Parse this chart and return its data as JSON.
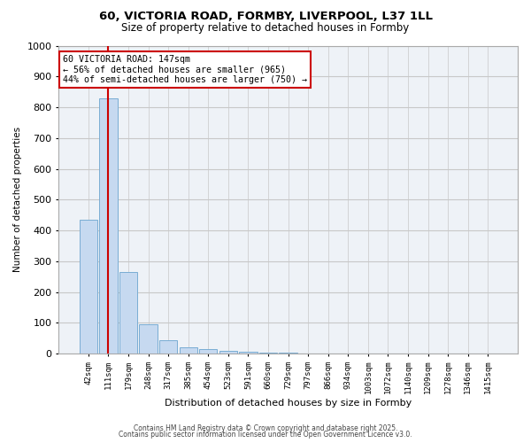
{
  "title_line1": "60, VICTORIA ROAD, FORMBY, LIVERPOOL, L37 1LL",
  "title_line2": "Size of property relative to detached houses in Formby",
  "xlabel": "Distribution of detached houses by size in Formby",
  "ylabel": "Number of detached properties",
  "bar_labels": [
    "42sqm",
    "111sqm",
    "179sqm",
    "248sqm",
    "317sqm",
    "385sqm",
    "454sqm",
    "523sqm",
    "591sqm",
    "660sqm",
    "729sqm",
    "797sqm",
    "866sqm",
    "934sqm",
    "1003sqm",
    "1072sqm",
    "1140sqm",
    "1209sqm",
    "1278sqm",
    "1346sqm",
    "1415sqm"
  ],
  "bar_values": [
    435,
    830,
    265,
    95,
    45,
    22,
    14,
    8,
    5,
    3,
    2,
    1,
    1,
    0,
    0,
    0,
    0,
    0,
    0,
    0,
    0
  ],
  "bar_color": "#c6d9f0",
  "bar_edge_color": "#7aadd4",
  "grid_color": "#c8c8c8",
  "background_color": "#eef2f7",
  "red_line_x": 1.0,
  "annotation_title": "60 VICTORIA ROAD: 147sqm",
  "annotation_line1": "← 56% of detached houses are smaller (965)",
  "annotation_line2": "44% of semi-detached houses are larger (750) →",
  "annotation_box_color": "#ffffff",
  "annotation_box_edge": "#cc0000",
  "red_line_color": "#cc0000",
  "ylim": [
    0,
    1000
  ],
  "yticks": [
    0,
    100,
    200,
    300,
    400,
    500,
    600,
    700,
    800,
    900,
    1000
  ],
  "footer_line1": "Contains HM Land Registry data © Crown copyright and database right 2025.",
  "footer_line2": "Contains public sector information licensed under the Open Government Licence v3.0."
}
